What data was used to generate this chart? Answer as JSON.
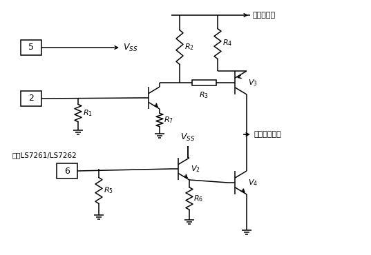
{
  "bg_color": "#ffffff",
  "line_color": "#000000",
  "labels": {
    "motor_power": "电动机电源",
    "motor_winding": "接电动机绕组",
    "from_ls": "来自LS7261/LS7262"
  },
  "figsize": [
    5.37,
    3.7
  ],
  "dpi": 100
}
